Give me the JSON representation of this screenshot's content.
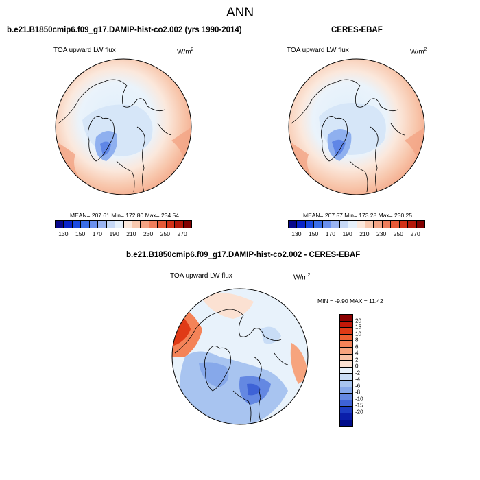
{
  "title": "ANN",
  "panels": [
    {
      "case_title": "b.e21.B1850cmip6.f09_g17.DAMIP-hist-co2.002 (yrs 1990-2014)",
      "variable": "TOA upward LW flux",
      "units": "W/m",
      "units_exp": "2",
      "stats": "MEAN= 207.61   Min= 172.80   Max= 234.54"
    },
    {
      "case_title": "CERES-EBAF",
      "variable": "TOA upward LW flux",
      "units": "W/m",
      "units_exp": "2",
      "stats": "MEAN= 207.57   Min= 173.28   Max= 230.25"
    },
    {
      "case_title": "b.e21.B1850cmip6.f09_g17.DAMIP-hist-co2.002 - CERES-EBAF",
      "variable": "TOA upward LW flux",
      "units": "W/m",
      "units_exp": "2",
      "stats": "MIN =  -9.90  MAX =  11.42"
    }
  ],
  "colorbar_abs": {
    "ticks": [
      "130",
      "150",
      "170",
      "190",
      "210",
      "230",
      "250",
      "270"
    ],
    "colors": [
      "#08088c",
      "#0a24c8",
      "#1b4ae0",
      "#3a6ee8",
      "#6a90ee",
      "#9ab4f2",
      "#c6d8f6",
      "#e6f0fa",
      "#fbe8dc",
      "#f8c8ae",
      "#f3a484",
      "#ee7e5c",
      "#e55a38",
      "#d33218",
      "#b4180a",
      "#820000"
    ]
  },
  "colorbar_diff": {
    "ticks": [
      "20",
      "15",
      "10",
      "8",
      "6",
      "4",
      "2",
      "0",
      "-2",
      "-4",
      "-6",
      "-8",
      "-10",
      "-15",
      "-20"
    ],
    "colors": [
      "#8b0000",
      "#c21808",
      "#e03a16",
      "#ee6032",
      "#f48358",
      "#f6a47e",
      "#f8c3a6",
      "#fbe1d2",
      "#e8f2fb",
      "#c9ddf6",
      "#a8c4f0",
      "#86a8ea",
      "#6488e2",
      "#3e62d6",
      "#1c3cc2",
      "#0a1eaa",
      "#000c8a"
    ]
  },
  "icons": [
    "north-polar-stereographic-map",
    "coastline-outline"
  ]
}
